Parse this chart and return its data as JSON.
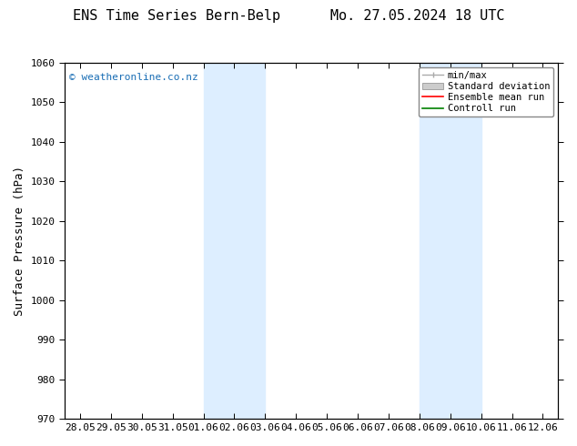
{
  "title_left": "ENS Time Series Bern-Belp",
  "title_right": "Mo. 27.05.2024 18 UTC",
  "ylabel": "Surface Pressure (hPa)",
  "watermark": "© weatheronline.co.nz",
  "ylim": [
    970,
    1060
  ],
  "yticks": [
    970,
    980,
    990,
    1000,
    1010,
    1020,
    1030,
    1040,
    1050,
    1060
  ],
  "x_labels": [
    "28.05",
    "29.05",
    "30.05",
    "31.05",
    "01.06",
    "02.06",
    "03.06",
    "04.06",
    "05.06",
    "06.06",
    "07.06",
    "08.06",
    "09.06",
    "10.06",
    "11.06",
    "12.06"
  ],
  "shaded_regions": [
    {
      "x_start": "01.06",
      "x_end": "03.06"
    },
    {
      "x_start": "08.06",
      "x_end": "10.06"
    }
  ],
  "shaded_color": "#ddeeff",
  "legend_entries": [
    {
      "label": "min/max",
      "color": "#aaaaaa",
      "linestyle": "-",
      "linewidth": 1.0
    },
    {
      "label": "Standard deviation",
      "color": "#cccccc",
      "linestyle": "-",
      "linewidth": 5
    },
    {
      "label": "Ensemble mean run",
      "color": "red",
      "linestyle": "-",
      "linewidth": 1.2
    },
    {
      "label": "Controll run",
      "color": "green",
      "linestyle": "-",
      "linewidth": 1.2
    }
  ],
  "background_color": "#ffffff",
  "plot_bg_color": "#ffffff",
  "title_fontsize": 11,
  "tick_fontsize": 8,
  "ylabel_fontsize": 9,
  "watermark_fontsize": 8,
  "legend_fontsize": 7.5,
  "figsize": [
    6.34,
    4.9
  ],
  "dpi": 100
}
